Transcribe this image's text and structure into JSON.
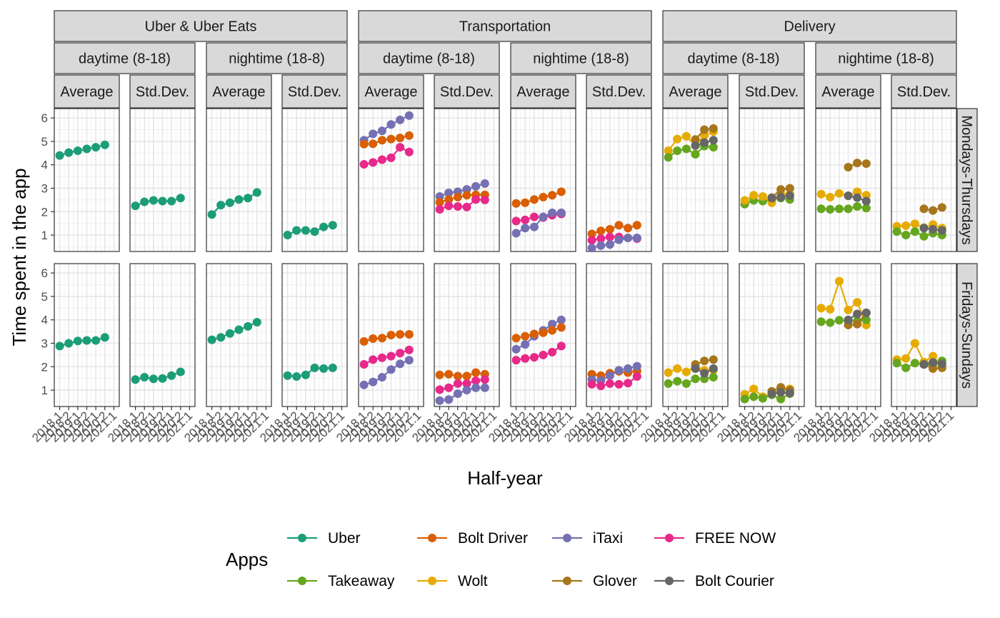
{
  "chart_data": {
    "type": "line",
    "x": [
      "2018.1",
      "2018.2",
      "2019.1",
      "2019.2",
      "2020.1",
      "2020.2",
      "2021.1"
    ],
    "xlabel": "Half-year",
    "ylabel": "Time spent in the app",
    "ylim": [
      0.3,
      6.4
    ],
    "yticks": [
      1,
      2,
      3,
      4,
      5,
      6
    ],
    "grid": true,
    "facet_cols": [
      {
        "group": "Uber & Uber Eats",
        "time": "daytime (8-18)",
        "stat": "Average"
      },
      {
        "group": "Uber & Uber Eats",
        "time": "daytime (8-18)",
        "stat": "Std.Dev."
      },
      {
        "group": "Uber & Uber Eats",
        "time": "nightime (18-8)",
        "stat": "Average"
      },
      {
        "group": "Uber & Uber Eats",
        "time": "nightime (18-8)",
        "stat": "Std.Dev."
      },
      {
        "group": "Transportation",
        "time": "daytime (8-18)",
        "stat": "Average"
      },
      {
        "group": "Transportation",
        "time": "daytime (8-18)",
        "stat": "Std.Dev."
      },
      {
        "group": "Transportation",
        "time": "nightime (18-8)",
        "stat": "Average"
      },
      {
        "group": "Transportation",
        "time": "nightime (18-8)",
        "stat": "Std.Dev."
      },
      {
        "group": "Delivery",
        "time": "daytime (8-18)",
        "stat": "Average"
      },
      {
        "group": "Delivery",
        "time": "daytime (8-18)",
        "stat": "Std.Dev."
      },
      {
        "group": "Delivery",
        "time": "nightime (18-8)",
        "stat": "Average"
      },
      {
        "group": "Delivery",
        "time": "nightime (18-8)",
        "stat": "Std.Dev."
      }
    ],
    "facet_rows": [
      "Mondays-Thursdays",
      "Fridays-Sundays"
    ],
    "group_strips": [
      {
        "label": "Uber & Uber Eats",
        "cols": [
          0,
          3
        ]
      },
      {
        "label": "Transportation",
        "cols": [
          4,
          7
        ]
      },
      {
        "label": "Delivery",
        "cols": [
          8,
          11
        ]
      }
    ],
    "time_strips": [
      {
        "label": "daytime (8-18)",
        "cols": [
          0,
          1
        ]
      },
      {
        "label": "nightime (18-8)",
        "cols": [
          2,
          3
        ]
      },
      {
        "label": "daytime (8-18)",
        "cols": [
          4,
          5
        ]
      },
      {
        "label": "nightime (18-8)",
        "cols": [
          6,
          7
        ]
      },
      {
        "label": "daytime (8-18)",
        "cols": [
          8,
          9
        ]
      },
      {
        "label": "nightime (18-8)",
        "cols": [
          10,
          11
        ]
      }
    ],
    "legend": {
      "title": "Apps",
      "position": "bottom",
      "entries": [
        {
          "name": "Uber",
          "color": "#1B9E77"
        },
        {
          "name": "Bolt Driver",
          "color": "#D95F02"
        },
        {
          "name": "iTaxi",
          "color": "#7570B3"
        },
        {
          "name": "FREE NOW",
          "color": "#E7298A"
        },
        {
          "name": "Takeaway",
          "color": "#66A61E"
        },
        {
          "name": "Wolt",
          "color": "#E6AB02"
        },
        {
          "name": "Glover",
          "color": "#A6761D"
        },
        {
          "name": "Bolt Courier",
          "color": "#666666"
        }
      ]
    },
    "panels": [
      {
        "row": 0,
        "col": 0,
        "series": [
          {
            "name": "Uber",
            "x_start": 0,
            "values": [
              4.4,
              4.52,
              4.6,
              4.68,
              4.75,
              4.85
            ]
          }
        ]
      },
      {
        "row": 0,
        "col": 1,
        "series": [
          {
            "name": "Uber",
            "x_start": 0,
            "values": [
              2.25,
              2.42,
              2.48,
              2.45,
              2.45,
              2.58
            ]
          }
        ]
      },
      {
        "row": 0,
        "col": 2,
        "series": [
          {
            "name": "Uber",
            "x_start": 0,
            "values": [
              1.88,
              2.28,
              2.38,
              2.52,
              2.58,
              2.82
            ]
          }
        ]
      },
      {
        "row": 0,
        "col": 3,
        "series": [
          {
            "name": "Uber",
            "x_start": 0,
            "values": [
              1.0,
              1.2,
              1.2,
              1.15,
              1.35,
              1.42
            ]
          }
        ]
      },
      {
        "row": 0,
        "col": 4,
        "series": [
          {
            "name": "iTaxi",
            "x_start": 0,
            "values": [
              5.05,
              5.32,
              5.45,
              5.72,
              5.92,
              6.1
            ]
          },
          {
            "name": "Bolt Driver",
            "x_start": 0,
            "values": [
              4.88,
              4.9,
              5.05,
              5.1,
              5.15,
              5.25
            ]
          },
          {
            "name": "FREE NOW",
            "x_start": 0,
            "values": [
              4.02,
              4.1,
              4.22,
              4.3,
              4.75,
              4.55
            ]
          }
        ]
      },
      {
        "row": 0,
        "col": 5,
        "series": [
          {
            "name": "iTaxi",
            "x_start": 0,
            "values": [
              2.65,
              2.8,
              2.85,
              2.95,
              3.08,
              3.2
            ]
          },
          {
            "name": "Bolt Driver",
            "x_start": 0,
            "values": [
              2.4,
              2.52,
              2.62,
              2.7,
              2.72,
              2.72
            ]
          },
          {
            "name": "FREE NOW",
            "x_start": 0,
            "values": [
              2.1,
              2.25,
              2.22,
              2.2,
              2.52,
              2.5
            ]
          }
        ]
      },
      {
        "row": 0,
        "col": 6,
        "series": [
          {
            "name": "Bolt Driver",
            "x_start": 0,
            "values": [
              2.35,
              2.38,
              2.52,
              2.62,
              2.7,
              2.85
            ]
          },
          {
            "name": "FREE NOW",
            "x_start": 0,
            "values": [
              1.6,
              1.65,
              1.78,
              1.75,
              1.85,
              1.9
            ]
          },
          {
            "name": "iTaxi",
            "x_start": 0,
            "values": [
              1.08,
              1.3,
              1.35,
              1.78,
              1.95,
              1.95
            ]
          }
        ]
      },
      {
        "row": 0,
        "col": 7,
        "series": [
          {
            "name": "Bolt Driver",
            "x_start": 0,
            "values": [
              1.05,
              1.18,
              1.25,
              1.42,
              1.3,
              1.42
            ]
          },
          {
            "name": "FREE NOW",
            "x_start": 0,
            "values": [
              0.78,
              0.85,
              0.92,
              0.92,
              0.88,
              0.85
            ]
          },
          {
            "name": "iTaxi",
            "x_start": 0,
            "values": [
              0.45,
              0.55,
              0.6,
              0.8,
              0.88,
              0.88
            ]
          }
        ]
      },
      {
        "row": 0,
        "col": 8,
        "series": [
          {
            "name": "Wolt",
            "x_start": 0,
            "values": [
              4.6,
              5.1,
              5.22,
              4.82,
              5.25,
              5.42
            ]
          },
          {
            "name": "Takeaway",
            "x_start": 0,
            "values": [
              4.32,
              4.6,
              4.68,
              4.45,
              4.8,
              4.75
            ]
          },
          {
            "name": "Glover",
            "x_start": 3,
            "values": [
              5.08,
              5.5,
              5.55
            ]
          },
          {
            "name": "Bolt Courier",
            "x_start": 3,
            "values": [
              4.82,
              4.95,
              5.05
            ]
          }
        ]
      },
      {
        "row": 0,
        "col": 9,
        "series": [
          {
            "name": "Takeaway",
            "x_start": 0,
            "values": [
              2.32,
              2.48,
              2.45,
              2.5,
              2.58,
              2.52
            ]
          },
          {
            "name": "Wolt",
            "x_start": 0,
            "values": [
              2.48,
              2.7,
              2.65,
              2.38,
              2.75,
              2.75
            ]
          },
          {
            "name": "Glover",
            "x_start": 3,
            "values": [
              2.6,
              2.95,
              3.0
            ]
          },
          {
            "name": "Bolt Courier",
            "x_start": 3,
            "values": [
              2.58,
              2.62,
              2.68
            ]
          }
        ]
      },
      {
        "row": 0,
        "col": 10,
        "series": [
          {
            "name": "Wolt",
            "x_start": 0,
            "values": [
              2.75,
              2.62,
              2.78,
              2.68,
              2.85,
              2.7
            ]
          },
          {
            "name": "Takeaway",
            "x_start": 0,
            "values": [
              2.12,
              2.1,
              2.12,
              2.12,
              2.22,
              2.15
            ]
          },
          {
            "name": "Glover",
            "x_start": 3,
            "values": [
              3.9,
              4.08,
              4.05
            ]
          },
          {
            "name": "Bolt Courier",
            "x_start": 3,
            "values": [
              2.68,
              2.6,
              2.45
            ]
          }
        ]
      },
      {
        "row": 0,
        "col": 11,
        "series": [
          {
            "name": "Wolt",
            "x_start": 0,
            "values": [
              1.38,
              1.4,
              1.48,
              1.32,
              1.45,
              1.3
            ]
          },
          {
            "name": "Takeaway",
            "x_start": 0,
            "values": [
              1.15,
              1.0,
              1.15,
              0.95,
              1.08,
              1.0
            ]
          },
          {
            "name": "Glover",
            "x_start": 3,
            "values": [
              2.12,
              2.05,
              2.18
            ]
          },
          {
            "name": "Bolt Courier",
            "x_start": 3,
            "values": [
              1.3,
              1.25,
              1.2
            ]
          }
        ]
      },
      {
        "row": 1,
        "col": 0,
        "series": [
          {
            "name": "Uber",
            "x_start": 0,
            "values": [
              2.88,
              3.0,
              3.1,
              3.12,
              3.12,
              3.25
            ]
          }
        ]
      },
      {
        "row": 1,
        "col": 1,
        "series": [
          {
            "name": "Uber",
            "x_start": 0,
            "values": [
              1.45,
              1.55,
              1.48,
              1.5,
              1.62,
              1.78
            ]
          }
        ]
      },
      {
        "row": 1,
        "col": 2,
        "series": [
          {
            "name": "Uber",
            "x_start": 0,
            "values": [
              3.15,
              3.25,
              3.42,
              3.58,
              3.72,
              3.9
            ]
          }
        ]
      },
      {
        "row": 1,
        "col": 3,
        "series": [
          {
            "name": "Uber",
            "x_start": 0,
            "values": [
              1.62,
              1.58,
              1.65,
              1.95,
              1.92,
              1.95
            ]
          }
        ]
      },
      {
        "row": 1,
        "col": 4,
        "series": [
          {
            "name": "Bolt Driver",
            "x_start": 0,
            "values": [
              3.08,
              3.2,
              3.22,
              3.35,
              3.38,
              3.38
            ]
          },
          {
            "name": "FREE NOW",
            "x_start": 0,
            "values": [
              2.1,
              2.3,
              2.38,
              2.45,
              2.58,
              2.72
            ]
          },
          {
            "name": "iTaxi",
            "x_start": 0,
            "values": [
              1.22,
              1.35,
              1.55,
              1.88,
              2.12,
              2.28
            ]
          }
        ]
      },
      {
        "row": 1,
        "col": 5,
        "series": [
          {
            "name": "Bolt Driver",
            "x_start": 0,
            "values": [
              1.65,
              1.68,
              1.6,
              1.6,
              1.75,
              1.68
            ]
          },
          {
            "name": "FREE NOW",
            "x_start": 0,
            "values": [
              1.02,
              1.1,
              1.28,
              1.28,
              1.4,
              1.45
            ]
          },
          {
            "name": "iTaxi",
            "x_start": 0,
            "values": [
              0.55,
              0.6,
              0.85,
              1.0,
              1.1,
              1.1
            ]
          }
        ]
      },
      {
        "row": 1,
        "col": 6,
        "series": [
          {
            "name": "iTaxi",
            "x_start": 0,
            "values": [
              2.75,
              2.95,
              3.3,
              3.55,
              3.82,
              4.0
            ]
          },
          {
            "name": "Bolt Driver",
            "x_start": 0,
            "values": [
              3.22,
              3.3,
              3.4,
              3.45,
              3.55,
              3.68
            ]
          },
          {
            "name": "FREE NOW",
            "x_start": 0,
            "values": [
              2.28,
              2.35,
              2.4,
              2.5,
              2.62,
              2.88
            ]
          }
        ]
      },
      {
        "row": 1,
        "col": 7,
        "series": [
          {
            "name": "Bolt Driver",
            "x_start": 0,
            "values": [
              1.68,
              1.62,
              1.72,
              1.8,
              1.75,
              1.82
            ]
          },
          {
            "name": "iTaxi",
            "x_start": 0,
            "values": [
              1.45,
              1.4,
              1.62,
              1.85,
              1.92,
              2.02
            ]
          },
          {
            "name": "FREE NOW",
            "x_start": 0,
            "values": [
              1.25,
              1.18,
              1.28,
              1.25,
              1.3,
              1.58
            ]
          }
        ]
      },
      {
        "row": 1,
        "col": 8,
        "series": [
          {
            "name": "Wolt",
            "x_start": 0,
            "values": [
              1.75,
              1.92,
              1.78,
              2.0,
              1.85,
              1.85
            ]
          },
          {
            "name": "Takeaway",
            "x_start": 0,
            "values": [
              1.28,
              1.38,
              1.28,
              1.48,
              1.48,
              1.55
            ]
          },
          {
            "name": "Glover",
            "x_start": 3,
            "values": [
              2.1,
              2.25,
              2.3
            ]
          },
          {
            "name": "Bolt Courier",
            "x_start": 3,
            "values": [
              1.92,
              1.72,
              1.92
            ]
          }
        ]
      },
      {
        "row": 1,
        "col": 9,
        "series": [
          {
            "name": "Wolt",
            "x_start": 0,
            "values": [
              0.82,
              1.05,
              0.72,
              0.85,
              0.95,
              1.05
            ]
          },
          {
            "name": "Takeaway",
            "x_start": 0,
            "values": [
              0.62,
              0.72,
              0.65,
              0.8,
              0.62,
              0.85
            ]
          },
          {
            "name": "Glover",
            "x_start": 3,
            "values": [
              0.95,
              1.12,
              1.0
            ]
          },
          {
            "name": "Bolt Courier",
            "x_start": 3,
            "values": [
              0.85,
              0.9,
              0.88
            ]
          }
        ]
      },
      {
        "row": 1,
        "col": 10,
        "series": [
          {
            "name": "Wolt",
            "x_start": 0,
            "values": [
              4.5,
              4.45,
              5.65,
              4.42,
              4.75,
              3.78
            ]
          },
          {
            "name": "Takeaway",
            "x_start": 0,
            "values": [
              3.92,
              3.88,
              3.98,
              3.95,
              3.95,
              4.0
            ]
          },
          {
            "name": "Glover",
            "x_start": 3,
            "values": [
              3.78,
              3.82,
              4.3
            ]
          },
          {
            "name": "Bolt Courier",
            "x_start": 3,
            "values": [
              4.0,
              4.25,
              4.3
            ]
          }
        ]
      },
      {
        "row": 1,
        "col": 11,
        "series": [
          {
            "name": "Wolt",
            "x_start": 0,
            "values": [
              2.3,
              2.35,
              3.0,
              2.2,
              2.45,
              2.0
            ]
          },
          {
            "name": "Takeaway",
            "x_start": 0,
            "values": [
              2.15,
              1.95,
              2.15,
              2.1,
              2.1,
              2.25
            ]
          },
          {
            "name": "Glover",
            "x_start": 3,
            "values": [
              2.1,
              1.92,
              1.95
            ]
          },
          {
            "name": "Bolt Courier",
            "x_start": 3,
            "values": [
              2.1,
              2.18,
              2.12
            ]
          }
        ]
      }
    ]
  }
}
